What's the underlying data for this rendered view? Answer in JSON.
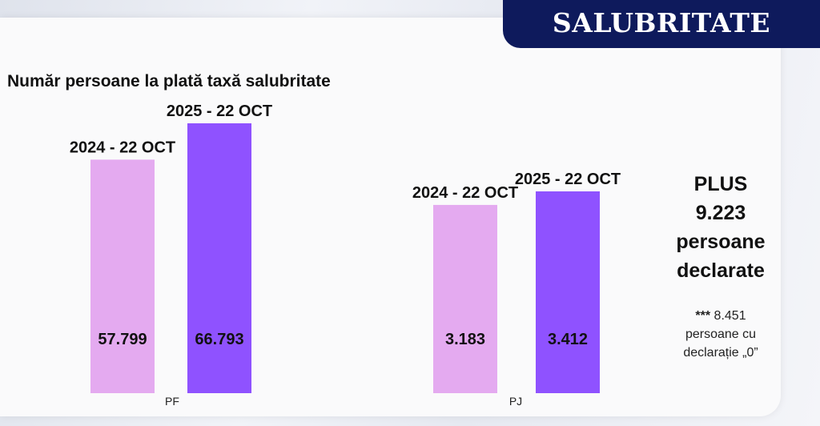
{
  "header": {
    "title": "SALUBRITATE"
  },
  "chart_data": {
    "type": "bar",
    "title": "Număr persoane la plată taxă salubritate",
    "groups": [
      {
        "name": "PF",
        "bars": [
          {
            "label": "2024 - 22 OCT",
            "value": 57799,
            "value_label": "57.799",
            "color": "#e4aaf0"
          },
          {
            "label": "2025 - 22 OCT",
            "value": 66793,
            "value_label": "66.793",
            "color": "#8f52ff"
          }
        ]
      },
      {
        "name": "PJ",
        "bars": [
          {
            "label": "2024 - 22 OCT",
            "value": 3183,
            "value_label": "3.183",
            "color": "#e4aaf0"
          },
          {
            "label": "2025 - 22 OCT",
            "value": 3412,
            "value_label": "3.412",
            "color": "#8f52ff"
          }
        ]
      }
    ]
  },
  "side_note": {
    "line1": "PLUS",
    "line2": "9.223",
    "line3": "persoane",
    "line4": "declarate",
    "stars": "***",
    "note_value": "8.451",
    "note_line2": "persoane cu",
    "note_line3": "declarație „0”"
  }
}
